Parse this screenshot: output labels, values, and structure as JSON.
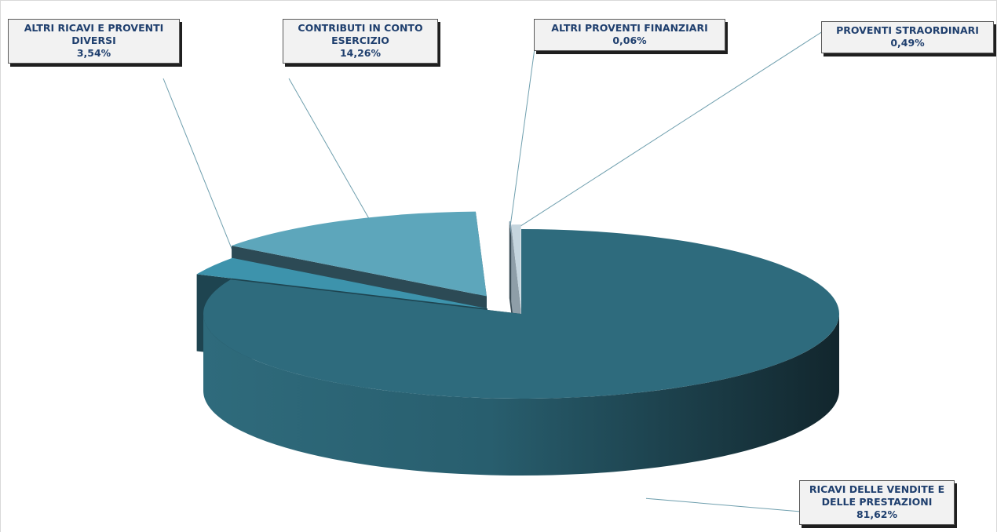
{
  "chart_data": {
    "type": "pie",
    "title": "",
    "three_d": true,
    "legend": "none",
    "categories": [
      "RICAVI DELLE VENDITE E DELLE PRESTAZIONI",
      "ALTRI RICAVI E PROVENTI DIVERSI",
      "CONTRIBUTI IN CONTO ESERCIZIO",
      "ALTRI PROVENTI FINANZIARI",
      "PROVENTI STRAORDINARI"
    ],
    "values": [
      81.62,
      3.54,
      14.26,
      0.06,
      0.49
    ],
    "value_labels": [
      "81,62%",
      "3,54%",
      "14,26%",
      "0,06%",
      "0,49%"
    ],
    "label_lines": [
      [
        "RICAVI DELLE VENDITE E",
        "DELLE PRESTAZIONI"
      ],
      [
        "ALTRI RICAVI E PROVENTI",
        "DIVERSI"
      ],
      [
        "CONTRIBUTI IN CONTO",
        "ESERCIZIO"
      ],
      [
        "ALTRI PROVENTI FINANZIARI"
      ],
      [
        "PROVENTI STRAORDINARI"
      ]
    ],
    "colors": [
      "#2e6b7d",
      "#3d93ac",
      "#5da6bb",
      "#7fa3b5",
      "#c5d5de"
    ],
    "side_colors": [
      "#1f4652",
      "#1e4450",
      "#2c4a55",
      "#3a4d57",
      "#8e9ea8"
    ],
    "label_color": "#1f3f6e"
  }
}
